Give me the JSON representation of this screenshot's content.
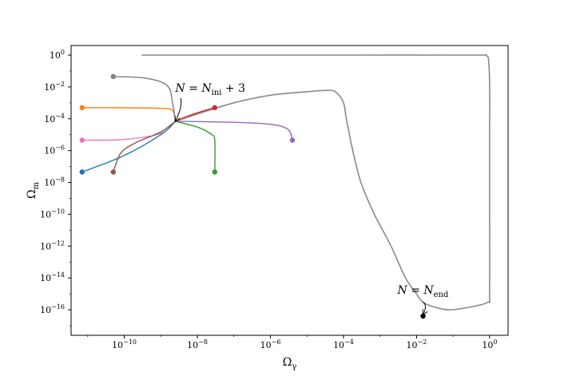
{
  "chart_data": {
    "type": "scatter",
    "x_scale": "log",
    "y_scale": "log",
    "xlabel": "Ω",
    "xlabel_sub": "γ",
    "ylabel": "Ω",
    "ylabel_sub": "m",
    "xlim": [
      3.5e-12,
      3.2
    ],
    "ylim": [
      2.5e-18,
      4
    ],
    "grid": false,
    "legend": "none",
    "x_ticks": [
      {
        "base": "10",
        "exp": "−10",
        "value": 1e-10
      },
      {
        "base": "10",
        "exp": "−8",
        "value": 1e-08
      },
      {
        "base": "10",
        "exp": "−6",
        "value": 1e-06
      },
      {
        "base": "10",
        "exp": "−4",
        "value": 0.0001
      },
      {
        "base": "10",
        "exp": "−2",
        "value": 0.01
      },
      {
        "base": "10",
        "exp": "0",
        "value": 1
      }
    ],
    "y_ticks": [
      {
        "base": "10",
        "exp": "0",
        "value": 1
      },
      {
        "base": "10",
        "exp": "−2",
        "value": 0.01
      },
      {
        "base": "10",
        "exp": "−4",
        "value": 0.0001
      },
      {
        "base": "10",
        "exp": "−6",
        "value": 1e-06
      },
      {
        "base": "10",
        "exp": "−8",
        "value": 1e-08
      },
      {
        "base": "10",
        "exp": "−10",
        "value": 1e-10
      },
      {
        "base": "10",
        "exp": "−12",
        "value": 1e-12
      },
      {
        "base": "10",
        "exp": "−14",
        "value": 1e-14
      },
      {
        "base": "10",
        "exp": "−16",
        "value": 1e-16
      }
    ],
    "convergence_point": [
      2.5e-09,
      7e-05
    ],
    "series": [
      {
        "color": "#ff7f0e",
        "points": [
          [
            7e-12,
            0.0005
          ],
          [
            1e-10,
            0.00049
          ],
          [
            1e-09,
            0.00045
          ],
          [
            2.1e-09,
            0.00033
          ],
          [
            2.5e-09,
            7e-05
          ]
        ]
      },
      {
        "color": "#7f7f7f",
        "points": [
          [
            5e-11,
            0.045
          ],
          [
            4e-10,
            0.035
          ],
          [
            1.5e-09,
            0.012
          ],
          [
            2.1e-09,
            0.001
          ],
          [
            2.5e-09,
            7e-05
          ]
        ]
      },
      {
        "color": "#d62728",
        "points": [
          [
            2.5e-09,
            7e-05
          ],
          [
            8e-09,
            0.0002
          ],
          [
            3e-08,
            0.0005
          ]
        ]
      },
      {
        "color": "#9467bd",
        "points": [
          [
            2.5e-09,
            7e-05
          ],
          [
            1e-07,
            6e-05
          ],
          [
            1e-06,
            4.5e-05
          ],
          [
            3e-06,
            2.2e-05
          ],
          [
            4e-06,
            4.5e-06
          ]
        ]
      },
      {
        "color": "#e377c2",
        "points": [
          [
            7e-12,
            4.5e-06
          ],
          [
            1e-10,
            5e-06
          ],
          [
            1e-09,
            1.2e-05
          ],
          [
            2.5e-09,
            7e-05
          ]
        ]
      },
      {
        "color": "#1f77b4",
        "points": [
          [
            7e-12,
            4.5e-08
          ],
          [
            1e-10,
            5e-07
          ],
          [
            1e-09,
            1e-05
          ],
          [
            2.5e-09,
            7e-05
          ]
        ]
      },
      {
        "color": "#8c564b",
        "points": [
          [
            5e-11,
            4.5e-08
          ],
          [
            8e-11,
            7e-07
          ],
          [
            2e-10,
            3e-06
          ],
          [
            1e-09,
            1.5e-05
          ],
          [
            2.5e-09,
            7e-05
          ]
        ]
      },
      {
        "color": "#2ca02c",
        "points": [
          [
            2.5e-09,
            7e-05
          ],
          [
            1e-08,
            3e-05
          ],
          [
            2.5e-08,
            1e-05
          ],
          [
            3e-08,
            4e-06
          ],
          [
            3e-08,
            4.5e-08
          ]
        ]
      }
    ],
    "main_trajectory": {
      "color": "#8a8a8a",
      "points": [
        [
          2.5e-09,
          7e-05
        ],
        [
          1e-08,
          0.0002
        ],
        [
          1e-07,
          0.001
        ],
        [
          1e-06,
          0.003
        ],
        [
          1e-05,
          0.005
        ],
        [
          3e-05,
          0.006
        ],
        [
          6e-05,
          0.005
        ],
        [
          0.0001,
          0.001
        ],
        [
          0.00012,
          0.0001
        ],
        [
          0.00018,
          1e-06
        ],
        [
          0.0003,
          1e-08
        ],
        [
          0.0007,
          1e-10
        ],
        [
          0.002,
          1e-12
        ],
        [
          0.005,
          1e-14
        ],
        [
          0.01,
          1e-15
        ],
        [
          0.015,
          3e-16
        ],
        [
          0.03,
          1.5e-16
        ],
        [
          0.08,
          1e-16
        ],
        [
          0.3,
          1.5e-16
        ],
        [
          0.9,
          3e-16
        ],
        [
          1.0,
          1e-15
        ],
        [
          1.0,
          1e-10
        ],
        [
          1.0,
          1e-05
        ],
        [
          1.0,
          0.01
        ],
        [
          0.95,
          0.3
        ],
        [
          0.8,
          0.95
        ],
        [
          0.3,
          1.0
        ],
        [
          0.0001,
          1.0
        ],
        [
          1e-07,
          1.0
        ],
        [
          1e-09,
          1.0
        ],
        [
          3e-10,
          1.0
        ]
      ]
    },
    "end_point": {
      "x": 0.015,
      "y": 4e-17,
      "color": "#000000"
    },
    "annotations": [
      {
        "lhs": "N",
        "eq": " = ",
        "rhs": "N",
        "rhs_sub": "ini",
        "tail": " + 3",
        "text_at": [
          2.5e-09,
          0.005
        ],
        "arrow_to": [
          2.5e-09,
          7e-05
        ],
        "arrow_from": [
          3.5e-09,
          0.002
        ]
      },
      {
        "lhs": "N",
        "eq": " = ",
        "rhs": "N",
        "rhs_sub": "end",
        "text_at": [
          0.003,
          1e-15
        ],
        "arrow_to": [
          0.015,
          5e-17
        ],
        "arrow_from": [
          0.015,
          3e-16
        ]
      }
    ]
  }
}
